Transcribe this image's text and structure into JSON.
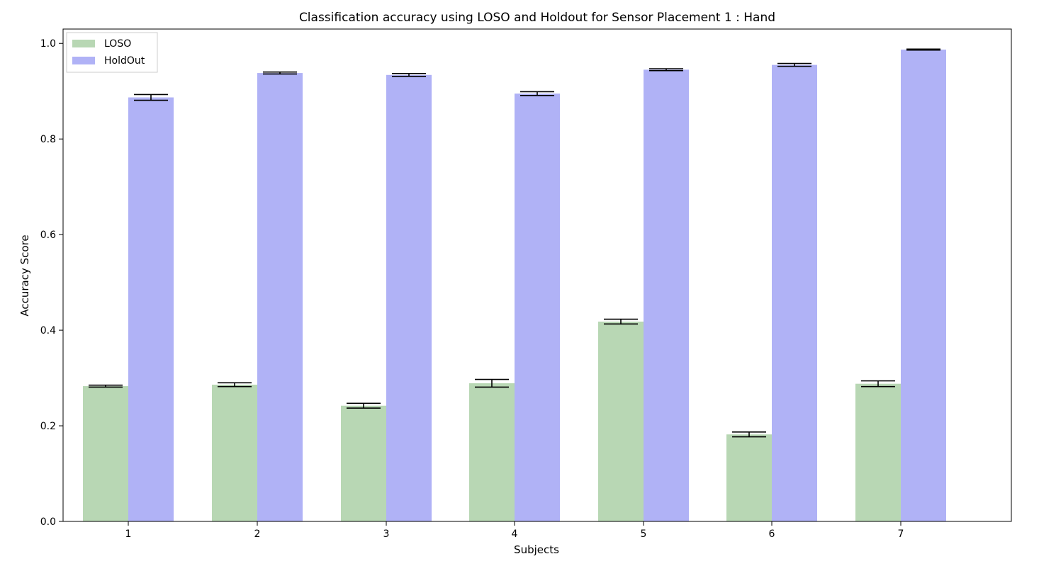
{
  "chart_data": {
    "type": "bar",
    "title": "Classification accuracy using LOSO and Holdout for Sensor Placement 1 : Hand",
    "xlabel": "Subjects",
    "ylabel": "Accuracy Score",
    "categories": [
      "1",
      "2",
      "3",
      "4",
      "5",
      "6",
      "7"
    ],
    "ylim": [
      0.0,
      1.03
    ],
    "yticks": [
      0.0,
      0.2,
      0.4,
      0.6,
      0.8,
      1.0
    ],
    "ytick_labels": [
      "0.0",
      "0.2",
      "0.4",
      "0.6",
      "0.8",
      "1.0"
    ],
    "grid": false,
    "legend_position": "top-left",
    "series": [
      {
        "name": "LOSO",
        "color": "#b8d7b4",
        "values": [
          0.283,
          0.286,
          0.242,
          0.289,
          0.418,
          0.182,
          0.288
        ],
        "errors": [
          0.002,
          0.004,
          0.005,
          0.008,
          0.005,
          0.005,
          0.006
        ]
      },
      {
        "name": "HoldOut",
        "color": "#b0b2f6",
        "values": [
          0.887,
          0.938,
          0.934,
          0.895,
          0.945,
          0.955,
          0.987
        ],
        "errors": [
          0.006,
          0.002,
          0.003,
          0.004,
          0.002,
          0.003,
          0.001
        ]
      }
    ]
  }
}
